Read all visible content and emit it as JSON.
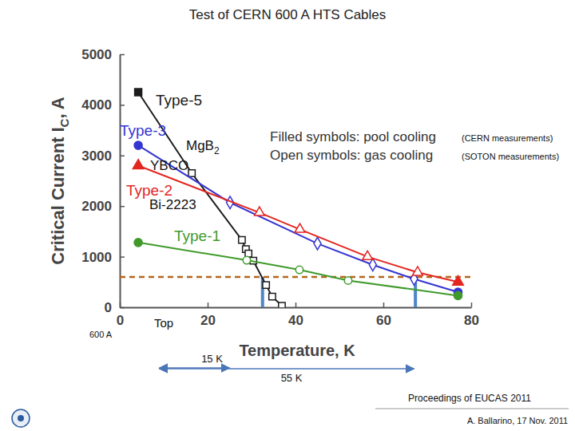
{
  "chart_data": {
    "type": "line",
    "title": "Test of CERN 600 A HTS Cables",
    "xlabel": "Temperature, K",
    "ylabel": [
      "Critical Current I",
      "C",
      ", A"
    ],
    "xlim": [
      0,
      80
    ],
    "ylim": [
      0,
      5000
    ],
    "xticks": [
      0,
      20,
      40,
      60,
      80
    ],
    "yticks": [
      0,
      1000,
      2000,
      3000,
      4000,
      5000
    ],
    "grid": false,
    "series": [
      {
        "name": "Type-5",
        "color": "#1c1c1c",
        "marker": "square",
        "x": [
          4.2,
          16.4,
          27.8,
          28.7,
          29.3,
          30.4,
          33.3,
          34.7,
          36.9
        ],
        "values": [
          4250,
          2650,
          1330,
          1150,
          1060,
          920,
          440,
          210,
          30
        ],
        "filled": [
          true,
          false,
          false,
          false,
          false,
          false,
          false,
          false,
          false
        ]
      },
      {
        "name": "Type-3",
        "color": "#3535d0",
        "marker": [
          "circle",
          "diamond",
          "diamond",
          "diamond",
          "diamond",
          "circle"
        ],
        "x": [
          4.2,
          25.1,
          45,
          57.6,
          67,
          77
        ],
        "values": [
          3200,
          2070,
          1260,
          840,
          560,
          300
        ],
        "filled": [
          true,
          false,
          false,
          false,
          false,
          true
        ]
      },
      {
        "name": "Type-2",
        "color": "#e3261f",
        "marker": "triangle",
        "x": [
          4.2,
          31.8,
          41,
          56.4,
          67.8,
          77
        ],
        "values": [
          2800,
          1870,
          1540,
          1000,
          690,
          500
        ],
        "filled": [
          true,
          false,
          false,
          false,
          false,
          true
        ]
      },
      {
        "name": "Type-1",
        "color": "#3f9a2b",
        "marker": "circle",
        "x": [
          4.2,
          28.9,
          40.9,
          52,
          77
        ],
        "values": [
          1280,
          930,
          740,
          530,
          230
        ],
        "filled": [
          true,
          false,
          false,
          false,
          true
        ]
      }
    ],
    "annotations": [
      {
        "text": [
          "MgB",
          "2"
        ]
      },
      {
        "text": "YBCO"
      },
      {
        "text": "Bi-2223"
      }
    ],
    "notes": [
      "Filled symbols: pool cooling",
      "Open symbols: gas cooling"
    ],
    "sources": [
      "(CERN measurements)",
      "(SOTON measurements)"
    ],
    "reference_y": {
      "value": 600,
      "label": "600 A"
    },
    "reference_x": [
      32.5,
      67.3
    ],
    "x_marker_label": "Top",
    "spans": [
      {
        "label": "15 K",
        "from": 9,
        "to": 25
      },
      {
        "label": "55 K",
        "from": 9,
        "to": 67
      }
    ],
    "footer": [
      "Proceedings of EUCAS 2011",
      "A. Ballarino, 17 Nov. 2011"
    ]
  }
}
